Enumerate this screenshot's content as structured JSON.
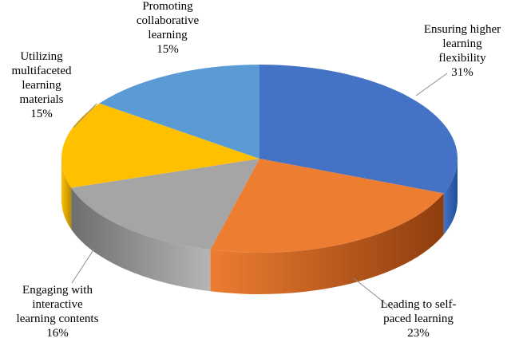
{
  "chart_data": {
    "type": "pie",
    "title": "",
    "three_d": true,
    "slices": [
      {
        "label": "Ensuring higher learning flexibility",
        "label_lines": [
          "Ensuring higher",
          "learning",
          "flexibility"
        ],
        "value": 31,
        "value_text": "31%",
        "color": "#4472C4",
        "side_color": "#1F4E9C"
      },
      {
        "label": "Leading to self-paced learning",
        "label_lines": [
          "Leading to self-",
          "paced learning"
        ],
        "value": 23,
        "value_text": "23%",
        "color": "#ED7D31",
        "side_color": "#8E3D0E"
      },
      {
        "label": "Engaging with interactive learning contents",
        "label_lines": [
          "Engaging with",
          "interactive",
          "learning contents"
        ],
        "value": 16,
        "value_text": "16%",
        "color": "#A5A5A5",
        "side_color": "#6B6B6B"
      },
      {
        "label": "Utilizing multifaceted learning materials",
        "label_lines": [
          "Utilizing",
          "multifaceted",
          "learning",
          "materials"
        ],
        "value": 15,
        "value_text": "15%",
        "color": "#FFC000",
        "side_color": "#B88A00"
      },
      {
        "label": "Promoting collaborative learning",
        "label_lines": [
          "Promoting",
          "collaborative",
          "learning"
        ],
        "value": 15,
        "value_text": "15%",
        "color": "#5B9BD5",
        "side_color": "#2E6DA4"
      }
    ],
    "legend": "none",
    "data_labels": "outside with leader lines"
  }
}
